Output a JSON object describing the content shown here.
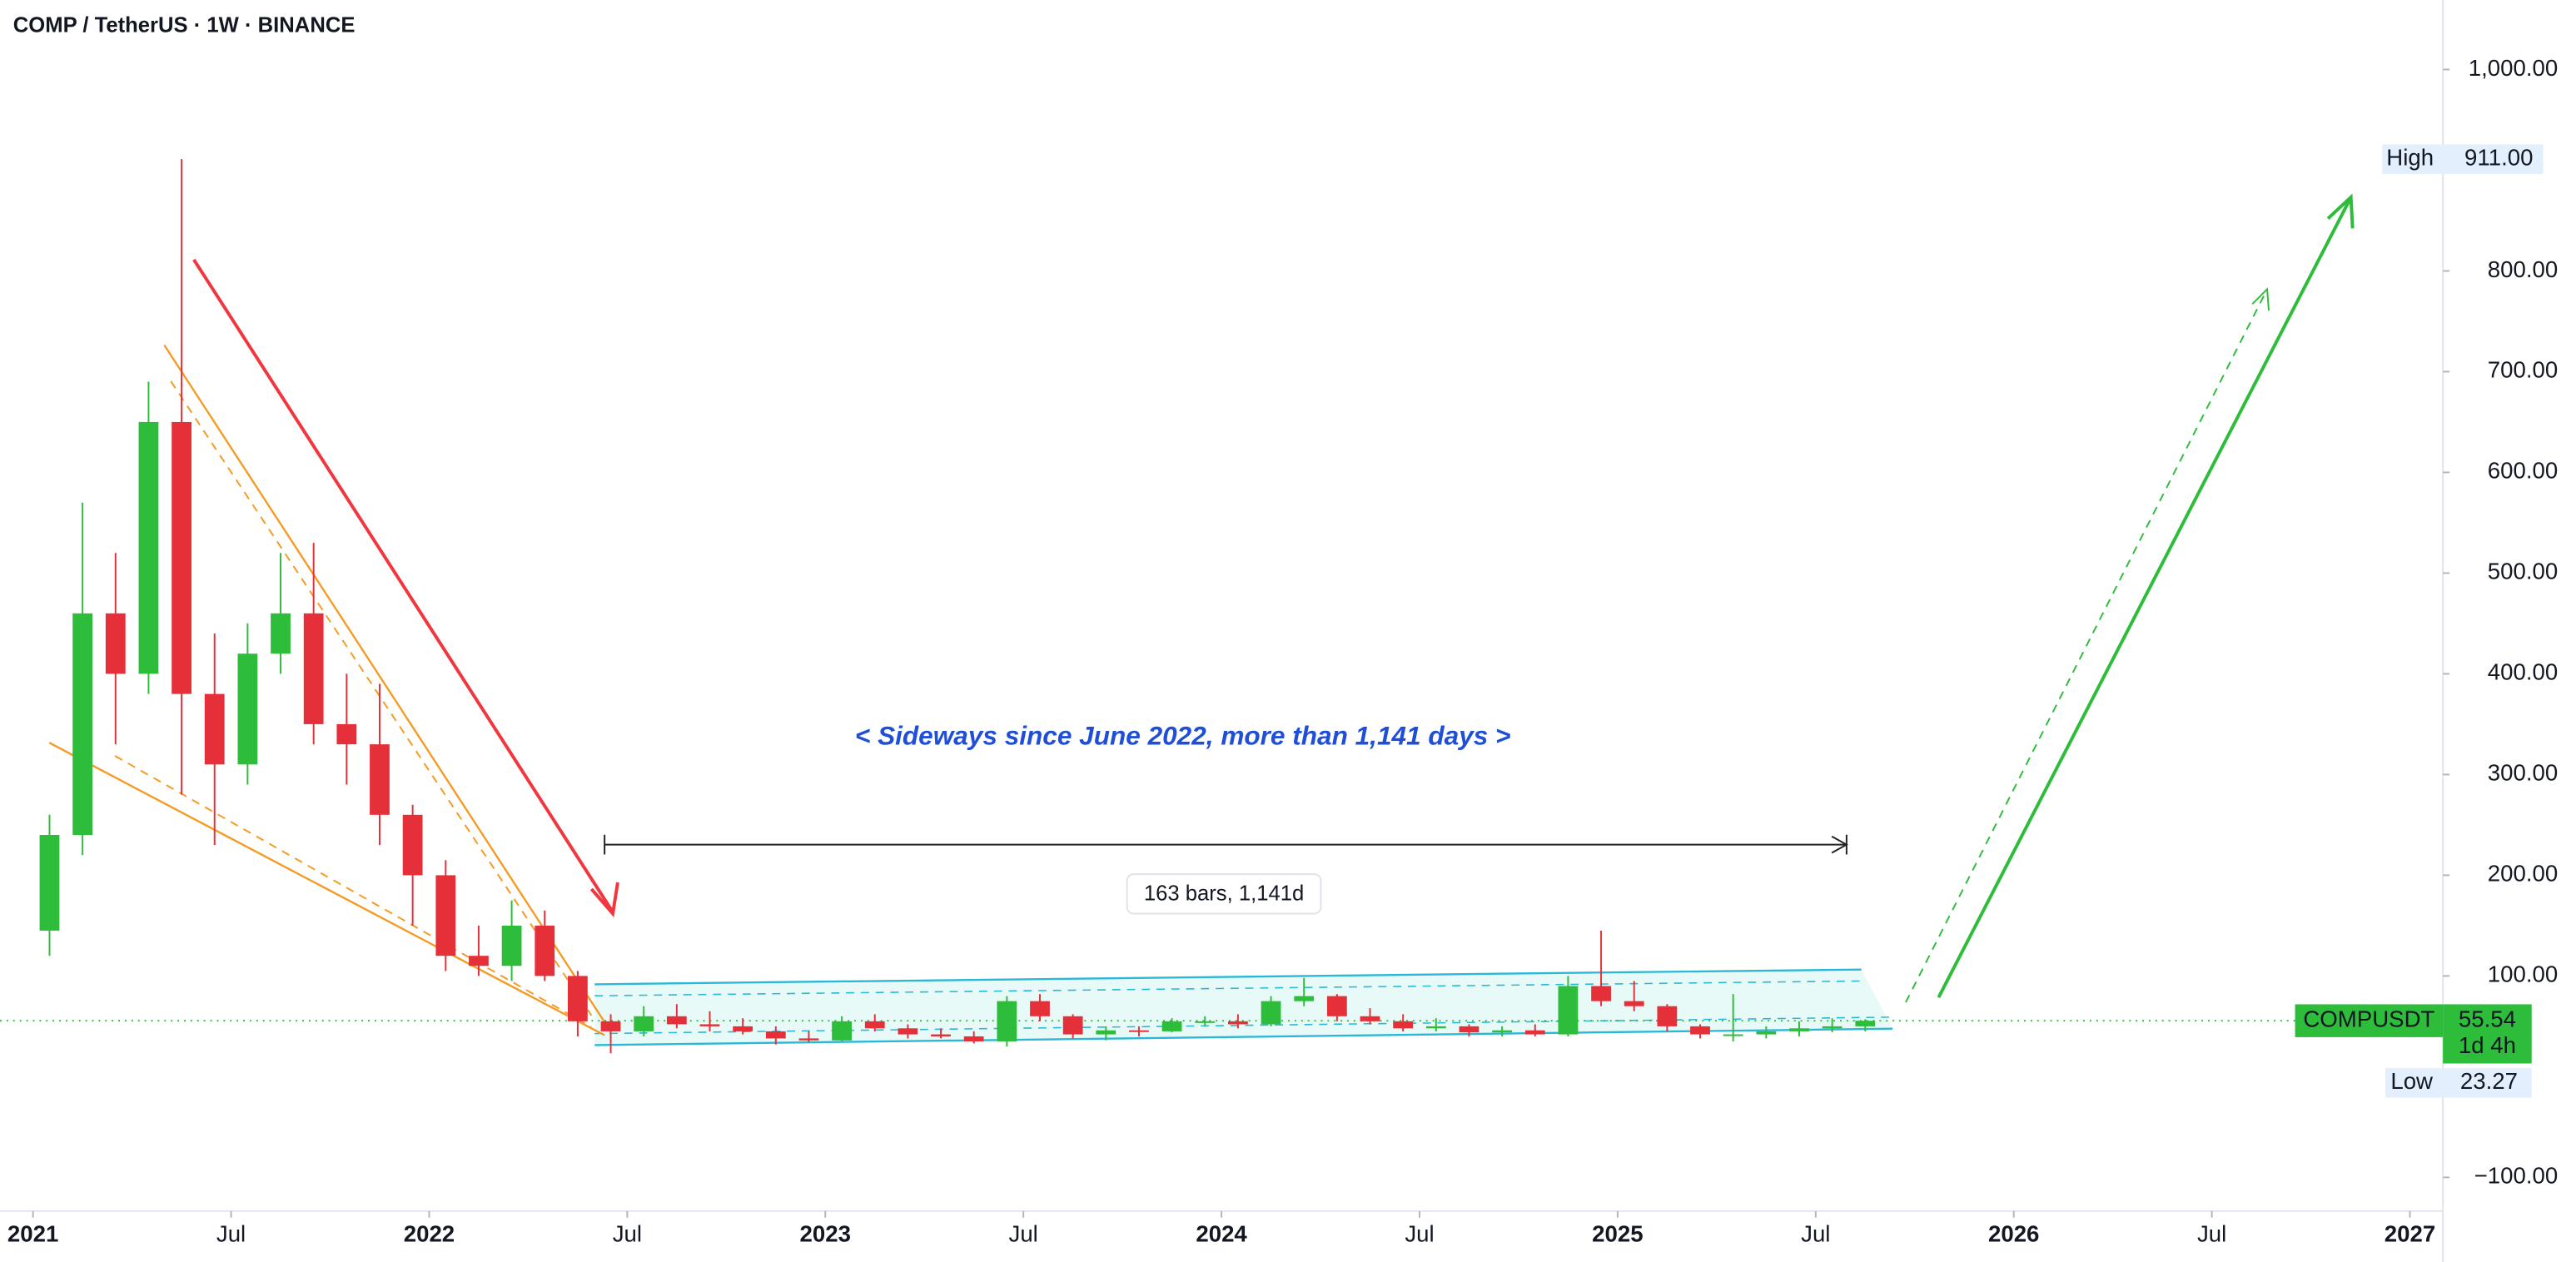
{
  "chart_data": {
    "type": "candlestick",
    "title": "COMP / TetherUS · 1W · BINANCE",
    "name": "COMPUSDT",
    "up_color": "#2ebd3b",
    "down_color": "#e5303a",
    "x": [
      "2021-01",
      "2021-02",
      "2021-03",
      "2021-04",
      "2021-05",
      "2021-06",
      "2021-07",
      "2021-08",
      "2021-09",
      "2021-10",
      "2021-11",
      "2021-12",
      "2022-01",
      "2022-02",
      "2022-03",
      "2022-04",
      "2022-05",
      "2022-06",
      "2022-07",
      "2022-08",
      "2022-09",
      "2022-10",
      "2022-11",
      "2022-12",
      "2023-01",
      "2023-02",
      "2023-03",
      "2023-04",
      "2023-05",
      "2023-06",
      "2023-07",
      "2023-08",
      "2023-09",
      "2023-10",
      "2023-11",
      "2023-12",
      "2024-01",
      "2024-02",
      "2024-03",
      "2024-04",
      "2024-05",
      "2024-06",
      "2024-07",
      "2024-08",
      "2024-09",
      "2024-10",
      "2024-11",
      "2024-12",
      "2025-01",
      "2025-02",
      "2025-03",
      "2025-04",
      "2025-05",
      "2025-06",
      "2025-07",
      "2025-08"
    ],
    "open": [
      145,
      240,
      460,
      400,
      650,
      380,
      310,
      420,
      460,
      350,
      330,
      260,
      200,
      120,
      110,
      150,
      100,
      55,
      45,
      60,
      52,
      50,
      45,
      38,
      36,
      55,
      48,
      42,
      40,
      35,
      75,
      60,
      42,
      46,
      45,
      55,
      55,
      52,
      75,
      80,
      60,
      55,
      48,
      50,
      44,
      46,
      42,
      90,
      75,
      70,
      50,
      42,
      42,
      45,
      48,
      50
    ],
    "high": [
      260,
      570,
      520,
      690,
      911,
      440,
      450,
      520,
      530,
      400,
      390,
      270,
      215,
      150,
      175,
      165,
      105,
      62,
      70,
      72,
      65,
      58,
      50,
      45,
      60,
      62,
      52,
      48,
      45,
      80,
      82,
      62,
      50,
      50,
      58,
      60,
      62,
      80,
      98,
      82,
      68,
      62,
      58,
      52,
      50,
      52,
      100,
      145,
      95,
      72,
      52,
      82,
      50,
      55,
      58,
      57
    ],
    "low": [
      120,
      220,
      330,
      380,
      280,
      230,
      290,
      400,
      330,
      290,
      230,
      150,
      105,
      100,
      95,
      95,
      40,
      23.27,
      40,
      48,
      45,
      42,
      32,
      34,
      35,
      45,
      38,
      38,
      33,
      30,
      55,
      38,
      36,
      40,
      44,
      50,
      48,
      50,
      70,
      55,
      52,
      45,
      45,
      40,
      40,
      40,
      40,
      70,
      65,
      45,
      38,
      35,
      38,
      40,
      44,
      45
    ],
    "close": [
      240,
      460,
      400,
      650,
      380,
      310,
      420,
      460,
      350,
      330,
      260,
      200,
      120,
      110,
      150,
      100,
      55,
      45,
      60,
      52,
      50,
      45,
      38,
      36,
      55,
      48,
      42,
      40,
      35,
      75,
      60,
      42,
      46,
      45,
      55,
      55,
      52,
      75,
      80,
      60,
      55,
      48,
      50,
      44,
      46,
      42,
      90,
      75,
      70,
      50,
      42,
      42,
      45,
      48,
      50,
      55.54
    ],
    "xlim": [
      "2020-12",
      "2027-02"
    ],
    "xticks": [
      {
        "value": "2021-01",
        "label": "2021"
      },
      {
        "value": "2021-07",
        "label": "Jul"
      },
      {
        "value": "2022-01",
        "label": "2022"
      },
      {
        "value": "2022-07",
        "label": "Jul"
      },
      {
        "value": "2023-01",
        "label": "2023"
      },
      {
        "value": "2023-07",
        "label": "Jul"
      },
      {
        "value": "2024-01",
        "label": "2024"
      },
      {
        "value": "2024-07",
        "label": "Jul"
      },
      {
        "value": "2025-01",
        "label": "2025"
      },
      {
        "value": "2025-07",
        "label": "Jul"
      },
      {
        "value": "2026-01",
        "label": "2026"
      },
      {
        "value": "2026-07",
        "label": "Jul"
      },
      {
        "value": "2027-01",
        "label": "2027"
      }
    ],
    "ylim": [
      -184,
      1069
    ],
    "yticks": [
      {
        "value": 1000,
        "label": "1,000.00"
      },
      {
        "value": 800,
        "label": "800.00"
      },
      {
        "value": 700,
        "label": "700.00"
      },
      {
        "value": 600,
        "label": "600.00"
      },
      {
        "value": 500,
        "label": "500.00"
      },
      {
        "value": 400,
        "label": "400.00"
      },
      {
        "value": 300,
        "label": "300.00"
      },
      {
        "value": 200,
        "label": "200.00"
      },
      {
        "value": 100,
        "label": "100.00"
      },
      {
        "value": -100,
        "label": "−100.00"
      }
    ],
    "high_marker": {
      "label": "High",
      "value": 911,
      "value_label": "911.00"
    },
    "low_marker": {
      "label": "Low",
      "value": 23.27
    },
    "countdown": "1d 4h",
    "annotations": {
      "sideways": "< Sideways since June 2022, more than 1,141 days >",
      "measure": "163 bars, 1,141d"
    }
  }
}
